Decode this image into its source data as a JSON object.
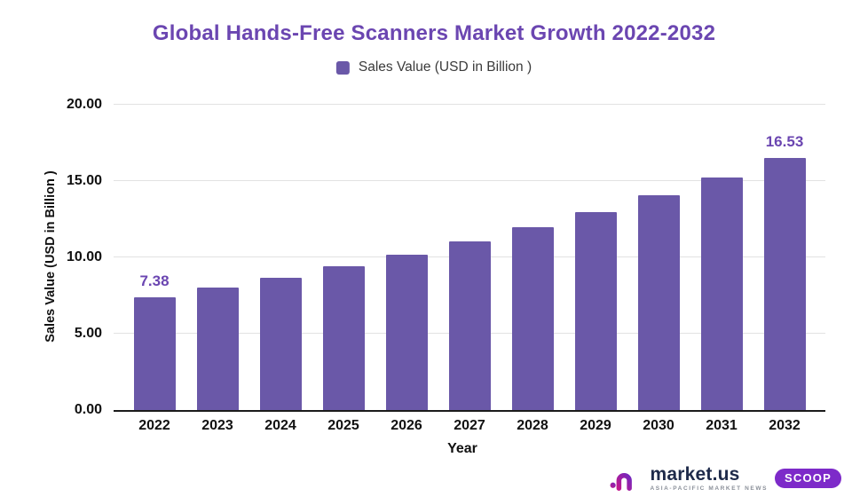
{
  "chart_data": {
    "type": "bar",
    "title": "Global Hands-Free Scanners Market Growth 2022-2032",
    "legend_label": "Sales Value (USD in Billion )",
    "xlabel": "Year",
    "ylabel": "Sales Value (USD in Billion )",
    "categories": [
      "2022",
      "2023",
      "2024",
      "2025",
      "2026",
      "2027",
      "2028",
      "2029",
      "2030",
      "2031",
      "2032"
    ],
    "values": [
      7.38,
      8.0,
      8.67,
      9.4,
      10.19,
      11.04,
      11.97,
      12.98,
      14.07,
      15.25,
      16.53
    ],
    "ylim": [
      0,
      20
    ],
    "y_ticks": [
      {
        "value": 0,
        "label": "0.00"
      },
      {
        "value": 5,
        "label": "5.00"
      },
      {
        "value": 10,
        "label": "10.00"
      },
      {
        "value": 15,
        "label": "15.00"
      },
      {
        "value": 20,
        "label": "20.00"
      }
    ],
    "annotations": [
      {
        "index": 0,
        "label": "7.38"
      },
      {
        "index": 10,
        "label": "16.53"
      }
    ],
    "grid": true,
    "legend_position": "top",
    "bar_color": "#6A58A8",
    "title_color": "#6B46B1",
    "annotation_color": "#6B46B1",
    "gridline_color": "#e2e2e2",
    "axis_color": "#1b1b1b"
  },
  "footer": {
    "brand": "market.us",
    "tagline": "ASIA-PACIFIC MARKET NEWS",
    "badge": "SCOOP",
    "badge_color": "#7D2AC9",
    "brand_color": "#1E2A4A",
    "logo_gradient_start": "#C2188E",
    "logo_gradient_end": "#7427BD"
  }
}
